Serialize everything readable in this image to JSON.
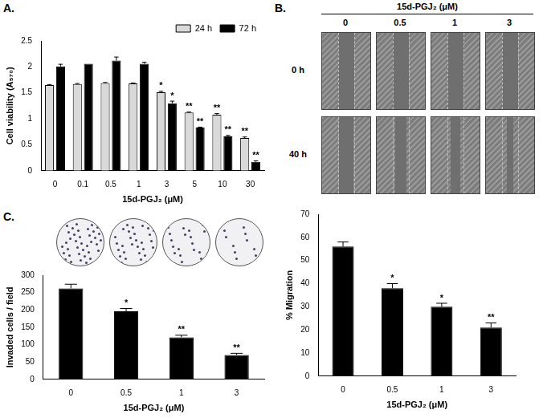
{
  "chart_data": [
    {
      "type": "bar",
      "title": "A.",
      "x_label": "15d-PGJ₂ (μM)",
      "y_label": "Cell viability (A₅₇₀)",
      "categories": [
        "0",
        "0.1",
        "0.5",
        "1",
        "3",
        "5",
        "10",
        "30"
      ],
      "series": [
        {
          "name": "24 h",
          "color": "#d9d9d9",
          "values": [
            1.65,
            1.67,
            1.69,
            1.68,
            1.51,
            1.12,
            1.08,
            0.63
          ],
          "errors": [
            0.01,
            0.01,
            0.01,
            0.01,
            0.02,
            0.01,
            0.02,
            0.02
          ],
          "significance": [
            null,
            null,
            null,
            null,
            "*",
            "**",
            "**",
            "**"
          ]
        },
        {
          "name": "72 h",
          "color": "#000000",
          "values": [
            2.01,
            2.06,
            2.12,
            2.06,
            1.3,
            0.83,
            0.66,
            0.17
          ],
          "errors": [
            0.04,
            0.0,
            0.07,
            0.03,
            0.04,
            0.01,
            0.02,
            0.02
          ],
          "significance": [
            null,
            null,
            null,
            null,
            "*",
            "**",
            "**",
            "**"
          ]
        }
      ],
      "ylim": [
        0,
        2.5
      ],
      "yticks": [
        0,
        0.5,
        1,
        1.5,
        2,
        2.5
      ],
      "grid": false,
      "legend": "top-right"
    },
    {
      "type": "bar",
      "title": "B.",
      "x_label": "15d-PGJ₂ (μM)",
      "y_label": "% Migration",
      "images": {
        "header": "15d-PGJ₂ (μM)",
        "columns": [
          "0",
          "0.5",
          "1",
          "3"
        ],
        "rows": [
          "0 h",
          "40 h"
        ]
      },
      "categories": [
        "0",
        "0.5",
        "1",
        "3"
      ],
      "values": [
        56,
        38,
        30,
        21
      ],
      "errors": [
        2,
        2,
        1.5,
        2
      ],
      "significance": [
        null,
        "*",
        "*",
        "**"
      ],
      "color": "#000000",
      "ylim": [
        0,
        70
      ],
      "yticks": [
        0,
        10,
        20,
        30,
        40,
        50,
        60,
        70
      ],
      "grid": false
    },
    {
      "type": "bar",
      "title": "C.",
      "x_label": "15d-PGJ₂ (μM)",
      "y_label": "Invaded cells / field",
      "categories": [
        "0",
        "0.5",
        "1",
        "3"
      ],
      "values": [
        262,
        196,
        121,
        70
      ],
      "errors": [
        12,
        8,
        6,
        5
      ],
      "significance": [
        null,
        "*",
        "**",
        "**"
      ],
      "color": "#000000",
      "ylim": [
        0,
        300
      ],
      "yticks": [
        0,
        50,
        100,
        150,
        200,
        250,
        300
      ],
      "grid": false
    }
  ]
}
